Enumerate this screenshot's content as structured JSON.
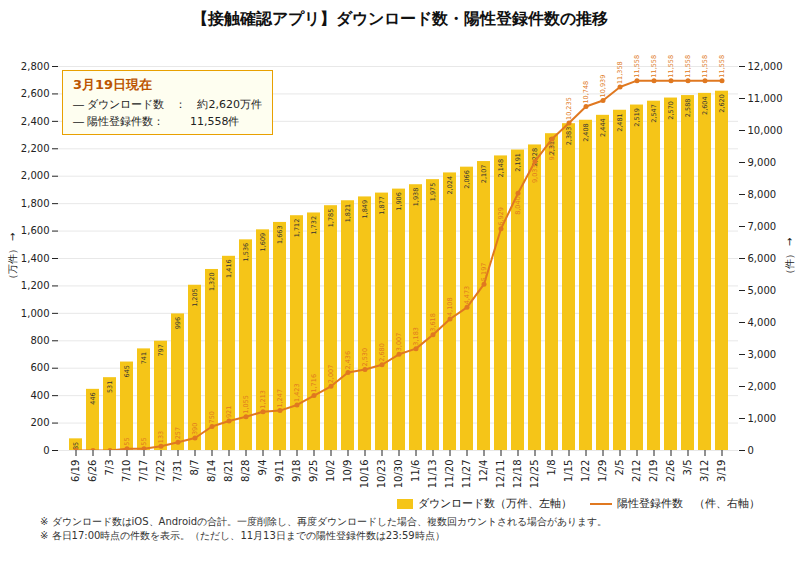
{
  "chart_data": {
    "type": "bar",
    "title": "【接触確認アプリ】ダウンロード数・陽性登録件数の推移",
    "ylabel": "（万件）",
    "y2label": "（件）",
    "annotations": [
      "3月19日現在",
      "― ダウンロード数　：　約2,620万件",
      "― 陽性登録件数：　　 11,558件"
    ],
    "notes": [
      "※ ダウンロード数はiOS、Androidの合計。一度削除し、再度ダウンロードした場合、複数回カウントされる場合があります。",
      "※ 各日17:00時点の件数を表示。（ただし、11月13日までの陽性登録件数は23:59時点）"
    ],
    "categories": [
      "6/19",
      "6/26",
      "7/3",
      "7/10",
      "7/17",
      "7/22",
      "7/31",
      "8/7",
      "8/14",
      "8/21",
      "8/28",
      "9/4",
      "9/11",
      "9/18",
      "9/25",
      "10/2",
      "10/9",
      "10/16",
      "10/23",
      "10/30",
      "11/6",
      "11/13",
      "11/20",
      "11/27",
      "12/4",
      "12/11",
      "12/18",
      "12/25",
      "1/8",
      "1/15",
      "1/22",
      "1/29",
      "2/5",
      "2/12",
      "2/19",
      "2/26",
      "3/5",
      "3/12",
      "3/19"
    ],
    "series": [
      {
        "name": "ダウンロード数（万件、左軸）",
        "type": "bar",
        "color": "#F5C518",
        "values": [
          85,
          446,
          531,
          645,
          741,
          797,
          996,
          1205,
          1320,
          1416,
          1536,
          1609,
          1663,
          1712,
          1732,
          1785,
          1821,
          1849,
          1877,
          1906,
          1938,
          1975,
          2024,
          2066,
          2107,
          2148,
          2191,
          2228,
          2310,
          2383,
          2408,
          2444,
          2481,
          2519,
          2547,
          2570,
          2588,
          2604,
          2620
        ],
        "value_labels": [
          "85",
          "446",
          "531",
          "645",
          "741",
          "797",
          "996",
          "1,205",
          "1,320",
          "1,416",
          "1,536",
          "1,609",
          "1,663",
          "1,712",
          "1,732",
          "1,785",
          "1,821",
          "1,849",
          "1,877",
          "1,906",
          "1,938",
          "1,975",
          "2,024",
          "2,066",
          "2,107",
          "2,148",
          "2,191",
          "2,228",
          "2,310",
          "2,383",
          "2,408",
          "2,444",
          "2,481",
          "2,519",
          "2,547",
          "2,570",
          "2,588",
          "2,604",
          "2,620"
        ]
      },
      {
        "name": "陽性登録件数　（件、右軸）",
        "type": "line",
        "axis": "y2",
        "color": "#E07820",
        "marker": "circle",
        "values": [
          0,
          0,
          0,
          55,
          55,
          133,
          257,
          390,
          750,
          921,
          1055,
          1213,
          1247,
          1423,
          1716,
          2007,
          2436,
          2530,
          2680,
          3007,
          3183,
          3618,
          4108,
          4473,
          5197,
          6929,
          8040,
          9033,
          9736,
          10235,
          10748,
          10939,
          11358,
          11558,
          11558,
          11558,
          11558,
          11558,
          11558
        ],
        "value_labels": [
          null,
          null,
          null,
          "55",
          "55",
          "133",
          "257",
          "390",
          "750",
          "921",
          "1,055",
          "1,213",
          "1,247",
          "1,423",
          "1,716",
          "2,007",
          "2,436",
          "2,530",
          "2,680",
          "3,007",
          "3,183",
          "3,618",
          "4,108",
          "4,473",
          "5,197",
          "6,929",
          "8,040",
          "9,033",
          "9,736",
          "10,235",
          "10,748",
          "10,939",
          "11,358",
          "11,558",
          "11,558",
          "11,558",
          "11,558",
          "11,558",
          "11,558"
        ]
      }
    ],
    "ylim": [
      0,
      2800
    ],
    "yticks": [
      0,
      200,
      400,
      600,
      800,
      {
        "value": 1000,
        "label": "1,000"
      },
      {
        "value": 1200,
        "label": "1,200"
      },
      {
        "value": 1400,
        "label": "1,400"
      },
      {
        "value": 1600,
        "label": "1,600"
      },
      {
        "value": 1800,
        "label": "1,800"
      },
      {
        "value": 2000,
        "label": "2,000"
      },
      {
        "value": 2200,
        "label": "2,200"
      },
      {
        "value": 2400,
        "label": "2,400"
      },
      {
        "value": 2600,
        "label": "2,600"
      },
      {
        "value": 2800,
        "label": "2,800"
      }
    ],
    "y2lim": [
      0,
      12000
    ],
    "y2ticks": [
      0,
      {
        "value": 1000,
        "label": "1,000"
      },
      {
        "value": 2000,
        "label": "2,000"
      },
      {
        "value": 3000,
        "label": "3,000"
      },
      {
        "value": 4000,
        "label": "4,000"
      },
      {
        "value": 5000,
        "label": "5,000"
      },
      {
        "value": 6000,
        "label": "6,000"
      },
      {
        "value": 7000,
        "label": "7,000"
      },
      {
        "value": 8000,
        "label": "8,000"
      },
      {
        "value": 9000,
        "label": "9,000"
      },
      {
        "value": 10000,
        "label": "10,000"
      },
      {
        "value": 11000,
        "label": "11,000"
      },
      {
        "value": 12000,
        "label": "12,000"
      }
    ],
    "grid": true,
    "legend": "lower right",
    "data_labels": true
  }
}
